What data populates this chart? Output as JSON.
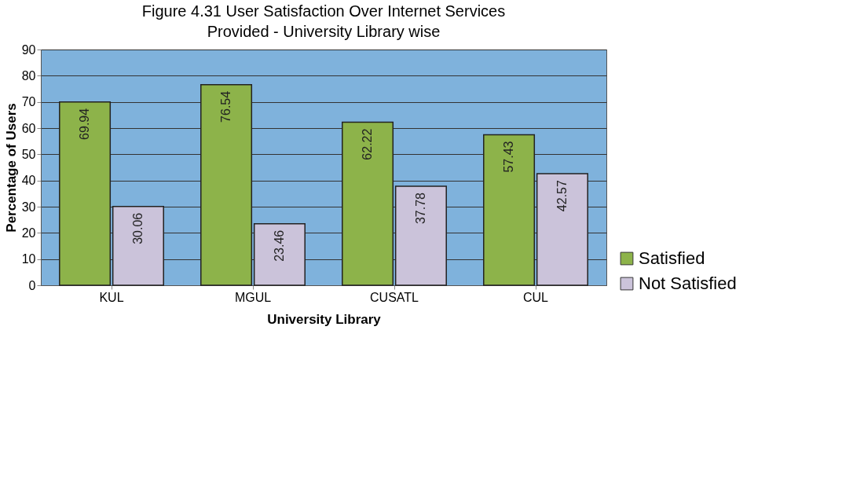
{
  "chart_data": {
    "type": "bar",
    "title": "Figure 4.31 User Satisfaction   Over Internet Services\nProvided - University Library wise",
    "xlabel": "University Library",
    "ylabel": "Percentage of Users",
    "categories": [
      "KUL",
      "MGUL",
      "CUSATL",
      "CUL"
    ],
    "series": [
      {
        "name": "Satisfied",
        "color": "#8db34a",
        "values": [
          69.94,
          76.54,
          62.22,
          57.43
        ]
      },
      {
        "name": "Not Satisfied",
        "color": "#cbc3da",
        "values": [
          30.06,
          23.46,
          37.78,
          42.57
        ]
      }
    ],
    "ylim": [
      0,
      90
    ],
    "yticks": [
      0,
      10,
      20,
      30,
      40,
      50,
      60,
      70,
      80,
      90
    ],
    "grid": "y",
    "legend": "bottom right",
    "data_labels": true
  }
}
